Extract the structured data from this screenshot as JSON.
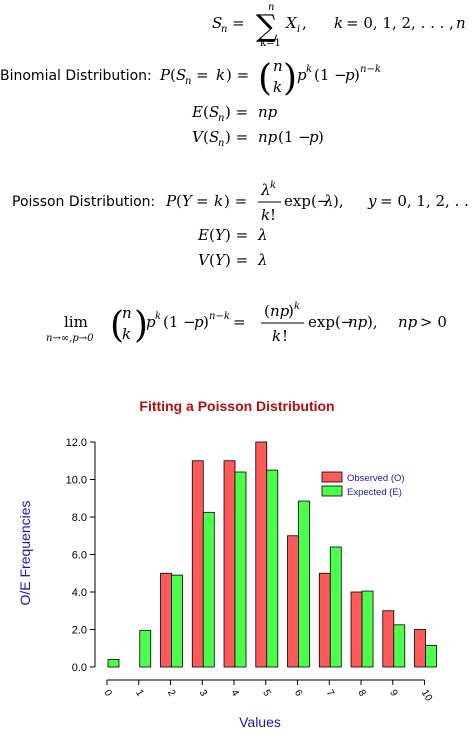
{
  "equations": {
    "sum": "S_n = Σ_{k=1}^{n} X_i,   k = 0, 1, 2, ..., n",
    "binom_label": "Binomial Distribution:",
    "binom_pmf": "P(S_n = k) = (n choose k) p^k (1 − p)^{n−k}",
    "binom_mean": "E(S_n) = np",
    "binom_var": "V(S_n) = np(1 − p)",
    "pois_label": "Poisson Distribution:",
    "pois_pmf": "P(Y = k) = λ^k / k! exp(−λ),   y = 0, 1, 2, ...",
    "pois_mean": "E(Y) = λ",
    "pois_var": "V(Y) = λ",
    "limit": "lim_{n→∞, p→0} (n choose k) p^k (1 − p)^{n−k} = (np)^k / k! exp(−np),   np > 0"
  },
  "chart_data": {
    "type": "bar",
    "title": "Fitting a Poisson Distribution",
    "xlabel": "Values",
    "ylabel": "O/E Frequencies",
    "categories": [
      "0",
      "1",
      "2",
      "3",
      "4",
      "5",
      "6",
      "7",
      "8",
      "9",
      "10"
    ],
    "series": [
      {
        "name": "Observed (O)",
        "color": "#ff5a5a",
        "values": [
          0,
          0,
          5,
          11,
          11,
          12,
          7,
          5,
          4,
          3,
          2
        ]
      },
      {
        "name": "Expected (E)",
        "color": "#4dff4d",
        "values": [
          0.4,
          1.95,
          4.9,
          8.25,
          10.4,
          10.5,
          8.85,
          6.4,
          4.05,
          2.25,
          1.15
        ]
      }
    ],
    "yticks": [
      "0.0",
      "2.0",
      "4.0",
      "6.0",
      "8.0",
      "10.0",
      "12.0"
    ],
    "ylim": [
      0,
      12
    ],
    "grid": false,
    "legend_position": "top-right",
    "title_color": "#b01010",
    "label_color": "#1a1aaa",
    "legend_text_color": "#1a1aaa"
  }
}
